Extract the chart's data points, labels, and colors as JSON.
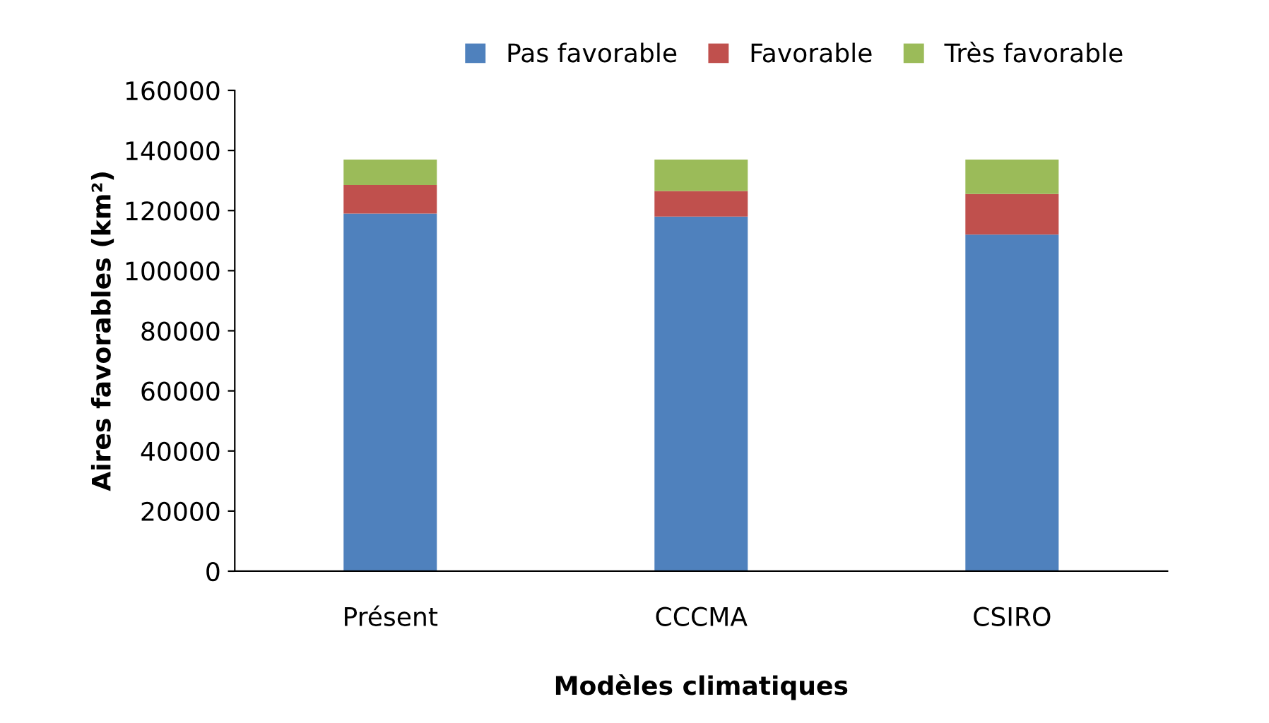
{
  "chart_data": {
    "type": "bar",
    "stacked": true,
    "xlabel": "Modèles climatiques",
    "ylabel": "Aires favorables (km²)",
    "categories": [
      "Présent",
      "CCCMA",
      "CSIRO"
    ],
    "series": [
      {
        "name": "Pas favorable",
        "color": "#4f81bd",
        "values": [
          119000,
          118000,
          112000
        ]
      },
      {
        "name": "Favorable",
        "color": "#c0504d",
        "values": [
          9500,
          8500,
          13500
        ]
      },
      {
        "name": "Très favorable",
        "color": "#9bbb59",
        "values": [
          8500,
          10500,
          11500
        ]
      }
    ],
    "ylim": [
      0,
      160000
    ],
    "yticks": [
      0,
      20000,
      40000,
      60000,
      80000,
      100000,
      120000,
      140000,
      160000
    ],
    "legend": "top",
    "grid": false
  }
}
